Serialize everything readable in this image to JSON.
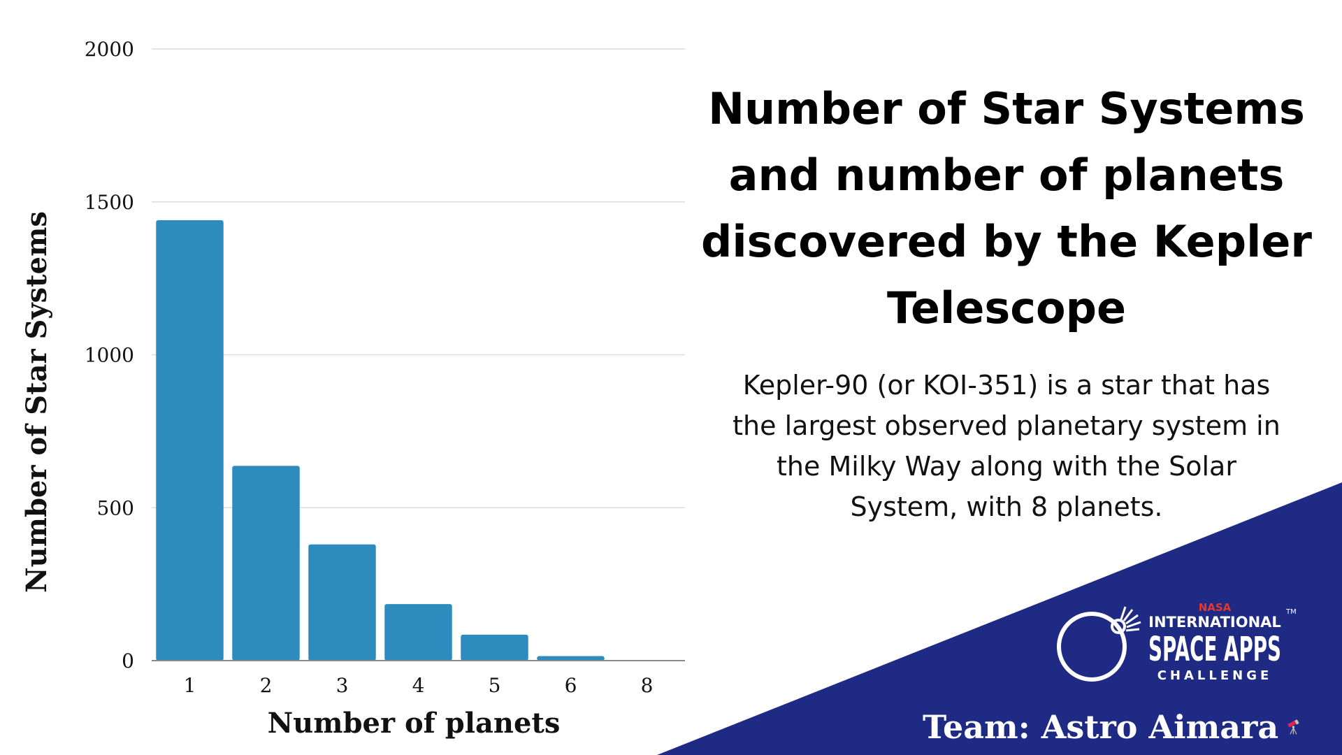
{
  "title": "Number of Star Systems and number of planets discovered by the Kepler Telescope",
  "description": "Kepler-90 (or KOI-351) is a star that has the largest observed planetary system in the Milky Way along with the Solar System, with 8 planets.",
  "team": "Team: Astro Aimara",
  "logo": {
    "top_text": "NASA",
    "line1": "INTERNATIONAL",
    "line2": "SPACE APPS",
    "line3": "CHALLENGE",
    "tm": "TM"
  },
  "colors": {
    "bar": "#2e8bbd",
    "banner": "#1e2a84",
    "accent_red": "#e03a2f"
  },
  "icons": [
    "telescope-icon",
    "space-apps-logo"
  ],
  "chart_data": {
    "type": "bar",
    "categories": [
      "1",
      "2",
      "3",
      "4",
      "5",
      "6",
      "8"
    ],
    "values": [
      1440,
      637,
      380,
      185,
      85,
      15,
      1
    ],
    "title": "",
    "xlabel": "Number of planets",
    "ylabel": "Number of Star Systems",
    "ylim": [
      0,
      2000
    ],
    "yticks": [
      0,
      500,
      1000,
      1500,
      2000
    ],
    "grid": true,
    "legend": "none"
  }
}
